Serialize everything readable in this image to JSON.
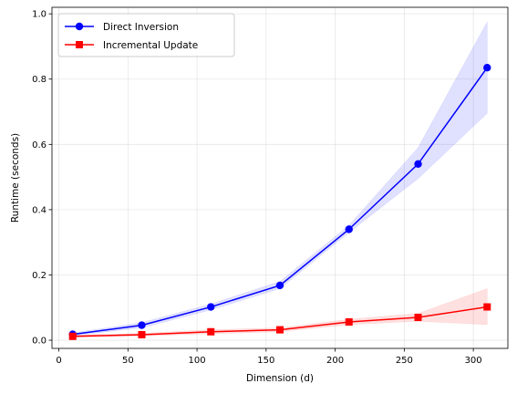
{
  "chart_data": {
    "type": "line",
    "title": "",
    "xlabel": "Dimension (d)",
    "ylabel": "Runtime (seconds)",
    "xlim": [
      -5,
      325
    ],
    "ylim": [
      -0.025,
      1.02
    ],
    "xticks": [
      0,
      50,
      100,
      150,
      200,
      250,
      300
    ],
    "yticks": [
      0.0,
      0.2,
      0.4,
      0.6,
      0.8,
      1.0
    ],
    "xtick_labels": [
      "0",
      "50",
      "100",
      "150",
      "200",
      "250",
      "300"
    ],
    "ytick_labels": [
      "0.0",
      "0.2",
      "0.4",
      "0.6",
      "0.8",
      "1.0"
    ],
    "grid": true,
    "legend_position": "top-left",
    "x": [
      10,
      60,
      110,
      160,
      210,
      260,
      310
    ],
    "series": [
      {
        "name": "Direct Inversion",
        "color": "#0000ff",
        "marker": "circle",
        "values": [
          0.018,
          0.046,
          0.102,
          0.168,
          0.34,
          0.54,
          0.835
        ],
        "lower": [
          0.014,
          0.038,
          0.093,
          0.158,
          0.33,
          0.495,
          0.695
        ],
        "upper": [
          0.022,
          0.054,
          0.111,
          0.18,
          0.352,
          0.59,
          0.975
        ]
      },
      {
        "name": "Incremental Update",
        "color": "#ff0000",
        "marker": "square",
        "values": [
          0.012,
          0.017,
          0.026,
          0.032,
          0.056,
          0.07,
          0.102
        ],
        "lower": [
          0.009,
          0.013,
          0.02,
          0.026,
          0.048,
          0.058,
          0.048
        ],
        "upper": [
          0.015,
          0.021,
          0.032,
          0.038,
          0.064,
          0.082,
          0.158
        ]
      }
    ]
  }
}
